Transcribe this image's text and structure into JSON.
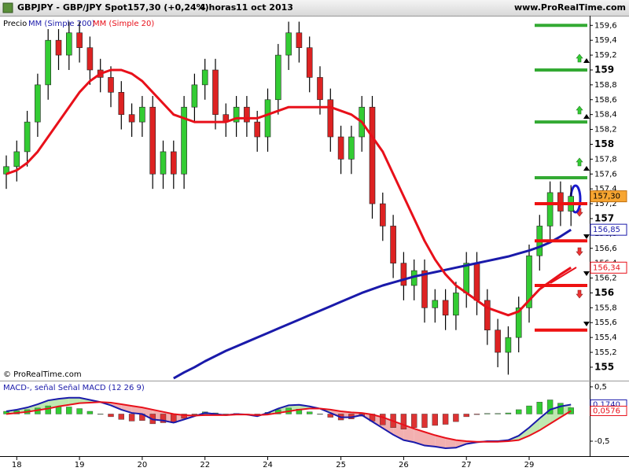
{
  "chart_data": [
    {
      "type": "candlestick",
      "title": "GBPJPY - GBP/JPY Spot",
      "last_price_text": "157,30 (+0,24%)",
      "timeframe": "4 horas",
      "date": "11 oct 2013",
      "source": "www.ProRealTime.com",
      "copyright": "© ProRealTime.com",
      "categories": [
        null,
        "18",
        null,
        null,
        null,
        null,
        null,
        "19",
        null,
        null,
        null,
        null,
        null,
        "20",
        null,
        null,
        null,
        null,
        null,
        "22",
        null,
        null,
        null,
        null,
        null,
        "24",
        null,
        null,
        null,
        null,
        null,
        null,
        "25",
        null,
        null,
        null,
        null,
        null,
        "26",
        null,
        null,
        null,
        null,
        null,
        "27",
        null,
        null,
        null,
        null,
        null,
        "29",
        null,
        null,
        null,
        null
      ],
      "ylim": [
        154.83,
        159.73
      ],
      "yticks": [
        155,
        {
          "value": 155.2,
          "label": "155,2"
        },
        {
          "value": 155.4,
          "label": "155,4"
        },
        {
          "value": 155.6,
          "label": "155,6"
        },
        {
          "value": 155.8,
          "label": "155,8"
        },
        156,
        {
          "value": 156.2,
          "label": "156,2"
        },
        {
          "value": 156.4,
          "label": "156,4"
        },
        {
          "value": 156.6,
          "label": "156,6"
        },
        {
          "value": 156.8,
          "label": "156,8"
        },
        157,
        {
          "value": 157.2,
          "label": "157,2"
        },
        {
          "value": 157.4,
          "label": "157,4"
        },
        {
          "value": 157.6,
          "label": "157,6"
        },
        {
          "value": 157.8,
          "label": "157,8"
        },
        158,
        {
          "value": 158.2,
          "label": "158,2"
        },
        {
          "value": 158.4,
          "label": "158,4"
        },
        {
          "value": 158.6,
          "label": "158,6"
        },
        {
          "value": 158.8,
          "label": "158,8"
        },
        159,
        {
          "value": 159.2,
          "label": "159,2"
        },
        {
          "value": 159.4,
          "label": "159,4"
        },
        {
          "value": 159.6,
          "label": "159,6"
        }
      ],
      "grid": false,
      "series": [
        {
          "name": "Precio",
          "type": "candlestick",
          "up_color": "#33cc33",
          "down_color": "#dd2222",
          "last_label": "157,30",
          "open": [
            157.6,
            157.7,
            157.9,
            158.3,
            158.8,
            159.4,
            159.2,
            159.5,
            159.3,
            159.0,
            158.9,
            158.7,
            158.4,
            158.3,
            158.5,
            157.6,
            157.9,
            157.6,
            158.5,
            158.8,
            159.0,
            158.4,
            158.3,
            158.5,
            158.3,
            158.1,
            158.6,
            159.2,
            159.5,
            159.3,
            158.9,
            158.6,
            158.1,
            157.8,
            158.1,
            158.5,
            157.2,
            156.9,
            156.4,
            156.1,
            156.3,
            155.8,
            155.9,
            155.7,
            156.0,
            156.4,
            155.9,
            155.5,
            155.2,
            155.4,
            155.8,
            156.5,
            156.9,
            157.35,
            157.1
          ],
          "high": [
            157.85,
            158.05,
            158.45,
            158.95,
            159.55,
            159.55,
            159.65,
            159.65,
            159.45,
            159.15,
            159.05,
            158.85,
            158.55,
            158.65,
            158.65,
            158.05,
            158.05,
            158.65,
            158.95,
            159.15,
            159.15,
            158.55,
            158.65,
            158.65,
            158.45,
            158.75,
            159.35,
            159.65,
            159.65,
            159.45,
            159.05,
            158.75,
            158.25,
            158.25,
            158.65,
            158.65,
            157.35,
            157.05,
            156.55,
            156.45,
            156.45,
            156.05,
            156.05,
            156.15,
            156.55,
            156.55,
            156.05,
            155.65,
            155.55,
            155.95,
            156.65,
            157.05,
            157.5,
            157.5,
            157.45
          ],
          "low": [
            157.4,
            157.5,
            157.7,
            158.1,
            158.6,
            159.0,
            159.0,
            159.1,
            158.8,
            158.7,
            158.5,
            158.2,
            158.1,
            158.1,
            157.4,
            157.4,
            157.4,
            157.4,
            158.3,
            158.6,
            158.2,
            158.1,
            158.1,
            158.1,
            157.9,
            157.9,
            158.4,
            159.0,
            159.1,
            158.7,
            158.4,
            157.9,
            157.6,
            157.6,
            157.9,
            157.0,
            156.7,
            156.2,
            155.9,
            155.9,
            155.6,
            155.6,
            155.5,
            155.5,
            155.8,
            155.7,
            155.3,
            155.0,
            154.9,
            155.2,
            155.6,
            156.3,
            156.7,
            156.9,
            156.9
          ],
          "close": [
            157.7,
            157.9,
            158.3,
            158.8,
            159.4,
            159.2,
            159.5,
            159.3,
            159.0,
            158.9,
            158.7,
            158.4,
            158.3,
            158.5,
            157.6,
            157.9,
            157.6,
            158.5,
            158.8,
            159.0,
            158.4,
            158.3,
            158.5,
            158.3,
            158.1,
            158.6,
            159.2,
            159.5,
            159.3,
            158.9,
            158.6,
            158.1,
            157.8,
            158.1,
            158.5,
            157.2,
            156.9,
            156.4,
            156.1,
            156.3,
            155.8,
            155.9,
            155.7,
            156.0,
            156.4,
            155.9,
            155.5,
            155.2,
            155.4,
            155.8,
            156.5,
            156.9,
            157.35,
            157.1,
            157.3
          ]
        },
        {
          "name": "MM (Simple 200)",
          "type": "line",
          "color": "#1a1aaa",
          "last_label": "156,85",
          "values": [
            null,
            null,
            null,
            null,
            null,
            null,
            null,
            null,
            null,
            null,
            null,
            null,
            null,
            null,
            null,
            null,
            154.85,
            154.93,
            155.0,
            155.08,
            155.15,
            155.22,
            155.28,
            155.34,
            155.4,
            155.46,
            155.52,
            155.58,
            155.64,
            155.7,
            155.76,
            155.82,
            155.88,
            155.94,
            156.0,
            156.05,
            156.1,
            156.14,
            156.18,
            156.22,
            156.25,
            156.28,
            156.31,
            156.34,
            156.37,
            156.4,
            156.43,
            156.46,
            156.49,
            156.53,
            156.57,
            156.62,
            156.68,
            156.76,
            156.85
          ]
        },
        {
          "name": "MM (Simple 20)",
          "type": "line",
          "color": "#e8101a",
          "last_label": "156,34",
          "values": [
            157.6,
            157.65,
            157.75,
            157.9,
            158.1,
            158.3,
            158.5,
            158.7,
            158.85,
            158.95,
            159.0,
            159.0,
            158.95,
            158.85,
            158.7,
            158.55,
            158.4,
            158.35,
            158.3,
            158.3,
            158.3,
            158.3,
            158.35,
            158.35,
            158.35,
            158.4,
            158.45,
            158.5,
            158.5,
            158.5,
            158.5,
            158.5,
            158.45,
            158.4,
            158.3,
            158.1,
            157.9,
            157.6,
            157.3,
            157.0,
            156.7,
            156.45,
            156.25,
            156.1,
            156.0,
            155.9,
            155.8,
            155.75,
            155.7,
            155.75,
            155.9,
            156.05,
            156.15,
            156.25,
            156.34
          ]
        }
      ],
      "levels": [
        {
          "value": 159.6,
          "color": "#33aa33"
        },
        {
          "value": 159.0,
          "color": "#33aa33"
        },
        {
          "value": 158.3,
          "color": "#33aa33"
        },
        {
          "value": 157.55,
          "color": "#33aa33"
        },
        {
          "value": 157.2,
          "color": "#ee1111"
        },
        {
          "value": 156.7,
          "color": "#ee1111"
        },
        {
          "value": 156.1,
          "color": "#ee1111"
        },
        {
          "value": 155.5,
          "color": "#ee1111"
        }
      ]
    },
    {
      "type": "macd",
      "title": "MACD-, señal Señal MACD (12 26 9)",
      "ylim": [
        -0.775,
        0.6
      ],
      "yticks": [
        {
          "value": 0.5,
          "label": "0,5"
        },
        {
          "value": -0.5,
          "label": "-0,5"
        }
      ],
      "series": [
        {
          "color": "#1a1aaa",
          "last_label": "0,1740",
          "values": [
            0.05,
            0.08,
            0.12,
            0.18,
            0.25,
            0.28,
            0.3,
            0.3,
            0.26,
            0.22,
            0.16,
            0.08,
            0.02,
            0.0,
            -0.1,
            -0.12,
            -0.16,
            -0.1,
            -0.04,
            0.02,
            0.0,
            -0.02,
            0.0,
            -0.01,
            -0.04,
            0.02,
            0.1,
            0.16,
            0.17,
            0.14,
            0.1,
            0.02,
            -0.06,
            -0.06,
            -0.02,
            -0.14,
            -0.26,
            -0.38,
            -0.48,
            -0.52,
            -0.58,
            -0.6,
            -0.63,
            -0.62,
            -0.55,
            -0.52,
            -0.5,
            -0.5,
            -0.48,
            -0.4,
            -0.25,
            -0.08,
            0.08,
            0.14,
            0.174
          ]
        },
        {
          "color": "#e8101a",
          "last_label": "0,0576",
          "values": [
            0.0,
            0.02,
            0.04,
            0.07,
            0.1,
            0.14,
            0.17,
            0.2,
            0.21,
            0.22,
            0.21,
            0.18,
            0.15,
            0.12,
            0.08,
            0.04,
            0.0,
            -0.02,
            -0.03,
            -0.02,
            -0.02,
            -0.02,
            -0.01,
            -0.01,
            -0.02,
            -0.01,
            0.02,
            0.05,
            0.08,
            0.1,
            0.1,
            0.08,
            0.05,
            0.03,
            0.02,
            -0.01,
            -0.06,
            -0.13,
            -0.2,
            -0.27,
            -0.33,
            -0.39,
            -0.44,
            -0.48,
            -0.5,
            -0.51,
            -0.51,
            -0.51,
            -0.5,
            -0.48,
            -0.4,
            -0.3,
            -0.18,
            -0.06,
            0.0576
          ]
        }
      ],
      "histogram": {
        "up_color": "#33cc33",
        "down_color": "#dd3333",
        "values": [
          0.05,
          0.06,
          0.08,
          0.11,
          0.15,
          0.14,
          0.13,
          0.1,
          0.05,
          0.0,
          -0.05,
          -0.1,
          -0.13,
          -0.12,
          -0.18,
          -0.16,
          -0.16,
          -0.08,
          -0.01,
          0.04,
          0.02,
          0.0,
          0.01,
          0.0,
          -0.02,
          0.03,
          0.08,
          0.11,
          0.09,
          0.04,
          0.0,
          -0.06,
          -0.11,
          -0.09,
          -0.04,
          -0.13,
          -0.2,
          -0.25,
          -0.28,
          -0.25,
          -0.25,
          -0.21,
          -0.19,
          -0.14,
          -0.05,
          -0.01,
          0.01,
          0.01,
          0.02,
          0.08,
          0.15,
          0.22,
          0.26,
          0.2,
          0.1164
        ]
      }
    }
  ]
}
